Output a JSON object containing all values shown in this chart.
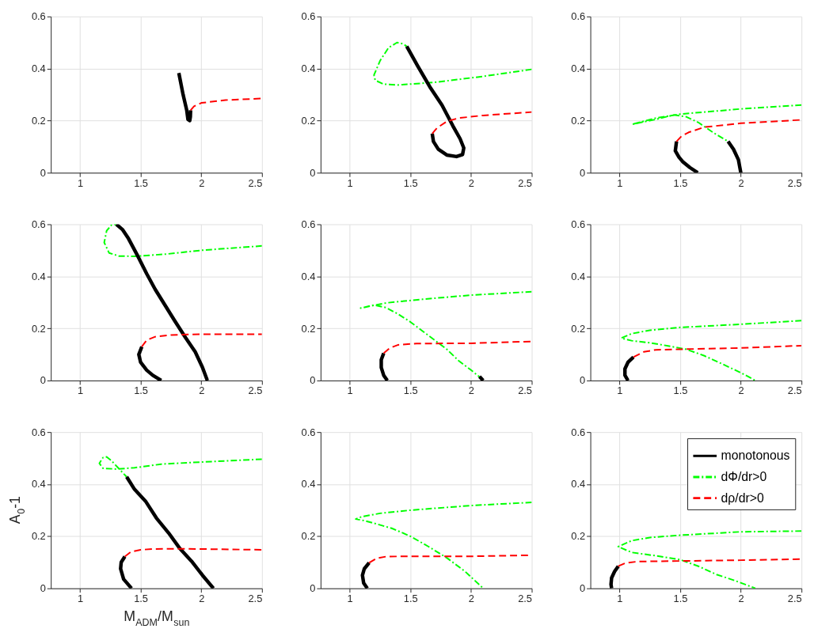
{
  "chart_data": [
    {
      "type": "line",
      "xlim": [
        0.76,
        2.5
      ],
      "ylim": [
        0,
        0.6
      ],
      "xticks": [
        1,
        1.5,
        2,
        2.5
      ],
      "yticks": [
        0,
        0.2,
        0.4,
        0.6
      ],
      "grid": true,
      "series": [
        {
          "color": "#000000",
          "line_style": "solid",
          "x": [
            1.815,
            1.85,
            1.88,
            1.89,
            1.905,
            1.91,
            1.912
          ],
          "values": [
            0.383,
            0.3,
            0.24,
            0.205,
            0.2,
            0.215,
            0.24
          ]
        },
        {
          "color": "#ff0000",
          "line_style": "dashed",
          "x": [
            1.912,
            1.94,
            2.0,
            2.2,
            2.5
          ],
          "values": [
            0.24,
            0.255,
            0.268,
            0.279,
            0.285
          ]
        }
      ]
    },
    {
      "type": "line",
      "xlim": [
        0.76,
        2.5
      ],
      "ylim": [
        0,
        0.6
      ],
      "xticks": [
        1,
        1.5,
        2,
        2.5
      ],
      "yticks": [
        0,
        0.2,
        0.4,
        0.6
      ],
      "grid": true,
      "series": [
        {
          "color": "#00ff00",
          "line_style": "dashdot",
          "x": [
            2.5,
            2.1,
            1.7,
            1.4,
            1.28,
            1.21,
            1.2,
            1.25,
            1.32,
            1.39,
            1.44,
            1.47
          ],
          "values": [
            0.397,
            0.37,
            0.347,
            0.337,
            0.34,
            0.355,
            0.375,
            0.43,
            0.48,
            0.5,
            0.495,
            0.485
          ]
        },
        {
          "color": "#000000",
          "line_style": "solid",
          "x": [
            1.47,
            1.56,
            1.66,
            1.76,
            1.85,
            1.91,
            1.94,
            1.93,
            1.88,
            1.8,
            1.73,
            1.69,
            1.68
          ],
          "values": [
            0.485,
            0.41,
            0.33,
            0.26,
            0.18,
            0.13,
            0.095,
            0.07,
            0.062,
            0.068,
            0.09,
            0.12,
            0.15
          ]
        },
        {
          "color": "#ff0000",
          "line_style": "dashed",
          "x": [
            1.68,
            1.72,
            1.8,
            1.9,
            2.1,
            2.5
          ],
          "values": [
            0.15,
            0.172,
            0.197,
            0.21,
            0.22,
            0.233
          ]
        }
      ]
    },
    {
      "type": "line",
      "xlim": [
        0.76,
        2.5
      ],
      "ylim": [
        0,
        0.6
      ],
      "xticks": [
        1,
        1.5,
        2,
        2.5
      ],
      "yticks": [
        0,
        0.2,
        0.4,
        0.6
      ],
      "grid": true,
      "series": [
        {
          "color": "#00ff00",
          "line_style": "dashdot",
          "x": [
            2.5,
            2.0,
            1.7,
            1.5,
            1.3,
            1.105,
            1.3,
            1.45,
            1.55,
            1.65,
            1.77,
            1.895
          ],
          "values": [
            0.26,
            0.245,
            0.233,
            0.225,
            0.21,
            0.186,
            0.205,
            0.222,
            0.215,
            0.193,
            0.155,
            0.12
          ]
        },
        {
          "color": "#000000",
          "line_style": "solid",
          "x": [
            1.895,
            1.94,
            1.98,
            2.0
          ],
          "values": [
            0.12,
            0.09,
            0.05,
            0.0
          ]
        },
        {
          "color": "#000000",
          "line_style": "solid",
          "x": [
            1.47,
            1.46,
            1.49,
            1.52,
            1.58,
            1.645
          ],
          "values": [
            0.12,
            0.084,
            0.06,
            0.043,
            0.02,
            0.0
          ]
        },
        {
          "color": "#ff0000",
          "line_style": "dashed",
          "x": [
            1.47,
            1.51,
            1.57,
            1.7,
            2.0,
            2.5
          ],
          "values": [
            0.12,
            0.14,
            0.155,
            0.175,
            0.19,
            0.203
          ]
        }
      ]
    },
    {
      "type": "line",
      "xlim": [
        0.76,
        2.5
      ],
      "ylim": [
        0,
        0.6
      ],
      "xticks": [
        1,
        1.5,
        2,
        2.5
      ],
      "yticks": [
        0,
        0.2,
        0.4,
        0.6
      ],
      "grid": true,
      "series": [
        {
          "color": "#00ff00",
          "line_style": "dashdot",
          "x": [
            2.5,
            2.0,
            1.7,
            1.45,
            1.32,
            1.24,
            1.2,
            1.22,
            1.26,
            1.3
          ],
          "values": [
            0.517,
            0.5,
            0.485,
            0.477,
            0.478,
            0.49,
            0.53,
            0.575,
            0.597,
            0.6
          ]
        },
        {
          "color": "#000000",
          "line_style": "solid",
          "x": [
            1.3,
            1.35,
            1.4,
            1.48,
            1.55,
            1.62,
            1.7,
            1.78,
            1.87,
            1.95,
            2.01,
            2.05
          ],
          "values": [
            0.6,
            0.58,
            0.545,
            0.475,
            0.41,
            0.35,
            0.29,
            0.23,
            0.165,
            0.11,
            0.05,
            0.0
          ]
        },
        {
          "color": "#000000",
          "line_style": "solid",
          "x": [
            1.51,
            1.485,
            1.5,
            1.55,
            1.6,
            1.67
          ],
          "values": [
            0.13,
            0.1,
            0.07,
            0.04,
            0.02,
            0.0
          ]
        },
        {
          "color": "#ff0000",
          "line_style": "dashed",
          "x": [
            1.51,
            1.55,
            1.62,
            1.75,
            2.0,
            2.5
          ],
          "values": [
            0.13,
            0.155,
            0.168,
            0.175,
            0.178,
            0.178
          ]
        }
      ]
    },
    {
      "type": "line",
      "xlim": [
        0.76,
        2.5
      ],
      "ylim": [
        0,
        0.6
      ],
      "xticks": [
        1,
        1.5,
        2,
        2.5
      ],
      "yticks": [
        0,
        0.2,
        0.4,
        0.6
      ],
      "grid": true,
      "series": [
        {
          "color": "#00ff00",
          "line_style": "dashdot",
          "x": [
            2.5,
            2.0,
            1.6,
            1.3,
            1.09,
            1.2,
            1.3,
            1.4,
            1.5,
            1.6,
            1.7,
            1.8,
            1.9,
            2.0,
            2.08
          ],
          "values": [
            0.341,
            0.328,
            0.312,
            0.298,
            0.278,
            0.29,
            0.28,
            0.255,
            0.225,
            0.19,
            0.155,
            0.12,
            0.075,
            0.04,
            0.01
          ]
        },
        {
          "color": "#000000",
          "line_style": "solid",
          "x": [
            1.28,
            1.26,
            1.26,
            1.28,
            1.31
          ],
          "values": [
            0.105,
            0.08,
            0.05,
            0.02,
            0.0
          ]
        },
        {
          "color": "#000000",
          "line_style": "solid",
          "x": [
            2.07,
            2.1
          ],
          "values": [
            0.015,
            0.0
          ]
        },
        {
          "color": "#ff0000",
          "line_style": "dashed",
          "x": [
            1.28,
            1.33,
            1.4,
            1.55,
            2.0,
            2.5
          ],
          "values": [
            0.105,
            0.125,
            0.137,
            0.142,
            0.143,
            0.15
          ]
        }
      ]
    },
    {
      "type": "line",
      "xlim": [
        0.76,
        2.5
      ],
      "ylim": [
        0,
        0.6
      ],
      "xticks": [
        1,
        1.5,
        2,
        2.5
      ],
      "yticks": [
        0,
        0.2,
        0.4,
        0.6
      ],
      "grid": true,
      "series": [
        {
          "color": "#00ff00",
          "line_style": "dashdot",
          "x": [
            2.5,
            2.0,
            1.5,
            1.25,
            1.1,
            1.015,
            1.1,
            1.25,
            1.4,
            1.55,
            1.7,
            1.85,
            2.0,
            2.12
          ],
          "values": [
            0.23,
            0.216,
            0.204,
            0.193,
            0.18,
            0.163,
            0.153,
            0.145,
            0.133,
            0.12,
            0.095,
            0.063,
            0.03,
            0.0
          ]
        },
        {
          "color": "#000000",
          "line_style": "solid",
          "x": [
            1.115,
            1.07,
            1.045,
            1.045,
            1.07
          ],
          "values": [
            0.09,
            0.07,
            0.045,
            0.02,
            0.0
          ]
        },
        {
          "color": "#ff0000",
          "line_style": "dashed",
          "x": [
            1.115,
            1.2,
            1.3,
            1.5,
            2.0,
            2.5
          ],
          "values": [
            0.09,
            0.11,
            0.118,
            0.12,
            0.125,
            0.134
          ]
        }
      ]
    },
    {
      "type": "line",
      "xlim": [
        0.76,
        2.5
      ],
      "ylim": [
        0,
        0.6
      ],
      "xticks": [
        1,
        1.5,
        2,
        2.5
      ],
      "yticks": [
        0,
        0.2,
        0.4,
        0.6
      ],
      "grid": true,
      "xlabel": "M$_{ADM}$/M$_{sun}$",
      "ylabel": "A$_{0}$-1",
      "series": [
        {
          "color": "#00ff00",
          "line_style": "dashdot",
          "x": [
            2.5,
            2.0,
            1.67,
            1.45,
            1.3,
            1.19,
            1.16,
            1.19,
            1.22,
            1.26,
            1.32,
            1.385
          ],
          "values": [
            0.496,
            0.485,
            0.477,
            0.463,
            0.458,
            0.461,
            0.48,
            0.502,
            0.505,
            0.49,
            0.46,
            0.428
          ]
        },
        {
          "color": "#000000",
          "line_style": "solid",
          "x": [
            1.385,
            1.45,
            1.54,
            1.63,
            1.73,
            1.82,
            1.92,
            2.01,
            2.1
          ],
          "values": [
            0.428,
            0.38,
            0.335,
            0.27,
            0.213,
            0.155,
            0.104,
            0.05,
            0.0
          ]
        },
        {
          "color": "#000000",
          "line_style": "solid",
          "x": [
            1.37,
            1.34,
            1.335,
            1.36,
            1.425
          ],
          "values": [
            0.122,
            0.1,
            0.075,
            0.035,
            0.0
          ]
        },
        {
          "color": "#ff0000",
          "line_style": "dashed",
          "x": [
            1.37,
            1.42,
            1.5,
            1.6,
            1.8,
            2.5
          ],
          "values": [
            0.122,
            0.14,
            0.148,
            0.151,
            0.152,
            0.148
          ]
        }
      ]
    },
    {
      "type": "line",
      "xlim": [
        0.76,
        2.5
      ],
      "ylim": [
        0,
        0.6
      ],
      "xticks": [
        1,
        1.5,
        2,
        2.5
      ],
      "yticks": [
        0,
        0.2,
        0.4,
        0.6
      ],
      "grid": true,
      "series": [
        {
          "color": "#00ff00",
          "line_style": "dashdot",
          "x": [
            2.5,
            2.0,
            1.5,
            1.25,
            1.1,
            1.05,
            1.12,
            1.2,
            1.35,
            1.5,
            1.65,
            1.8,
            1.95,
            2.1
          ],
          "values": [
            0.33,
            0.318,
            0.3,
            0.288,
            0.275,
            0.266,
            0.26,
            0.25,
            0.23,
            0.2,
            0.16,
            0.117,
            0.065,
            0.0
          ]
        },
        {
          "color": "#000000",
          "line_style": "solid",
          "x": [
            1.16,
            1.12,
            1.105,
            1.115,
            1.145
          ],
          "values": [
            0.098,
            0.075,
            0.05,
            0.02,
            0.0
          ]
        },
        {
          "color": "#ff0000",
          "line_style": "dashed",
          "x": [
            1.16,
            1.22,
            1.3,
            1.5,
            2.0,
            2.5
          ],
          "values": [
            0.098,
            0.115,
            0.122,
            0.123,
            0.123,
            0.127
          ]
        }
      ]
    },
    {
      "type": "line",
      "xlim": [
        0.76,
        2.5
      ],
      "ylim": [
        0,
        0.6
      ],
      "xticks": [
        1,
        1.5,
        2,
        2.5
      ],
      "yticks": [
        0,
        0.2,
        0.4,
        0.6
      ],
      "grid": true,
      "legend": "top right",
      "series": [
        {
          "name": "monotonous",
          "color": "#000000",
          "line_style": "solid",
          "x": [
            0.99,
            0.96,
            0.935,
            0.93,
            0.935
          ],
          "values": [
            0.085,
            0.065,
            0.04,
            0.015,
            0.0
          ]
        },
        {
          "name": "dΦ/dr>0",
          "color": "#00ff00",
          "line_style": "dashdot",
          "x": [
            2.5,
            2.0,
            1.5,
            1.25,
            1.1,
            0.99,
            1.1,
            1.3,
            1.5,
            1.65,
            1.8,
            1.95,
            2.12
          ],
          "values": [
            0.22,
            0.217,
            0.204,
            0.195,
            0.183,
            0.16,
            0.138,
            0.125,
            0.11,
            0.085,
            0.053,
            0.03,
            0.0
          ]
        },
        {
          "name": "dρ/dr>0",
          "color": "#ff0000",
          "line_style": "dashed",
          "x": [
            0.99,
            1.05,
            1.15,
            1.5,
            2.0,
            2.5
          ],
          "values": [
            0.085,
            0.097,
            0.103,
            0.105,
            0.108,
            0.112
          ]
        }
      ]
    }
  ]
}
